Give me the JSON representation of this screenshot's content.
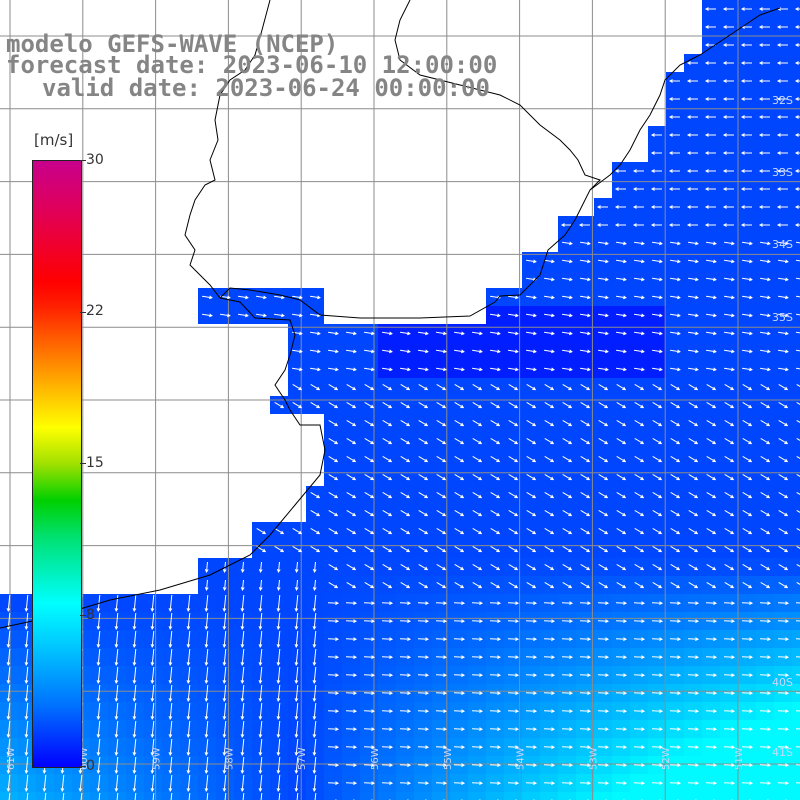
{
  "title": {
    "model": "modelo GEFS-WAVE (NCEP)",
    "forecast": "forecast date: 2023-06-10 12:00:00",
    "valid": "valid date: 2023-06-24 00:00:00"
  },
  "colorbar": {
    "unit": "[m/s]",
    "ticks": [
      "30",
      "22",
      "15",
      "8",
      "0"
    ],
    "colors": [
      "#0000ff",
      "#0070ff",
      "#00c8ff",
      "#00ffff",
      "#00d000",
      "#ffff00",
      "#ff9000",
      "#ff0000",
      "#c8008c"
    ]
  },
  "map": {
    "lat_labels": [
      "32S",
      "33S",
      "34S",
      "35S",
      "40S",
      "41S"
    ],
    "lon_labels": [
      "61W",
      "60W",
      "59W",
      "58W",
      "57W",
      "56W",
      "55W",
      "54W",
      "53W",
      "52W",
      "51W"
    ],
    "land_color": "#ffffff",
    "ocean_base_color": "#1450ff",
    "grid_color": "#8c8c8c"
  }
}
